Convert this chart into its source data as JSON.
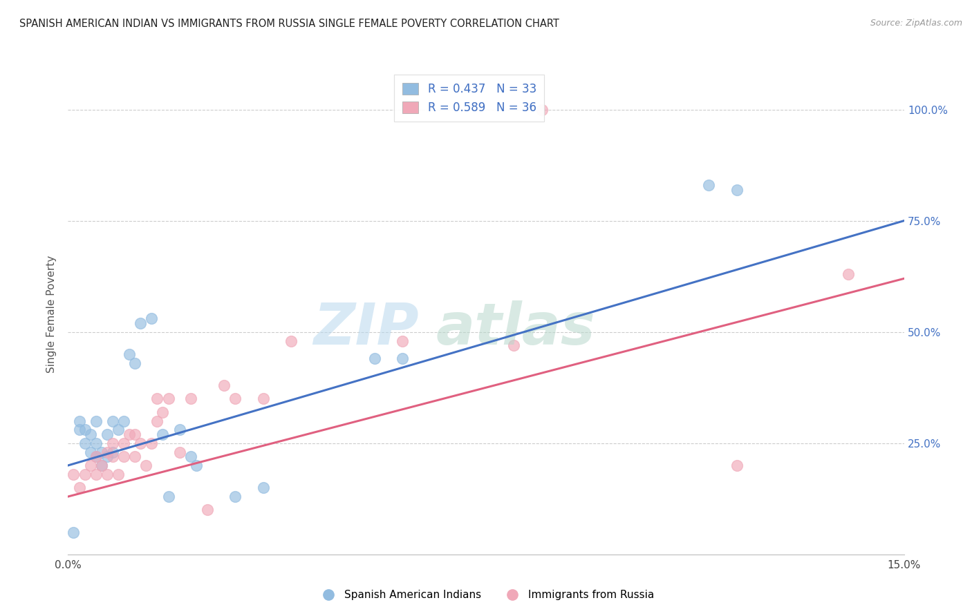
{
  "title": "SPANISH AMERICAN INDIAN VS IMMIGRANTS FROM RUSSIA SINGLE FEMALE POVERTY CORRELATION CHART",
  "source": "Source: ZipAtlas.com",
  "ylabel": "Single Female Poverty",
  "xlim": [
    0.0,
    0.15
  ],
  "ylim": [
    0.0,
    1.08
  ],
  "y_ticks": [
    0.25,
    0.5,
    0.75,
    1.0
  ],
  "y_tick_labels": [
    "25.0%",
    "50.0%",
    "75.0%",
    "100.0%"
  ],
  "x_tick_left": "0.0%",
  "x_tick_right": "15.0%",
  "blue_R": 0.437,
  "blue_N": 33,
  "pink_R": 0.589,
  "pink_N": 36,
  "blue_color": "#92bce0",
  "pink_color": "#f0a8b8",
  "blue_line_color": "#4472c4",
  "pink_line_color": "#e06080",
  "background_color": "#ffffff",
  "legend_label_blue": "Spanish American Indians",
  "legend_label_pink": "Immigrants from Russia",
  "blue_scatter_x": [
    0.001,
    0.002,
    0.002,
    0.003,
    0.003,
    0.004,
    0.004,
    0.005,
    0.005,
    0.005,
    0.006,
    0.006,
    0.007,
    0.007,
    0.008,
    0.008,
    0.009,
    0.01,
    0.011,
    0.012,
    0.013,
    0.015,
    0.017,
    0.018,
    0.02,
    0.022,
    0.023,
    0.03,
    0.035,
    0.055,
    0.06,
    0.115,
    0.12
  ],
  "blue_scatter_y": [
    0.05,
    0.28,
    0.3,
    0.25,
    0.28,
    0.23,
    0.27,
    0.22,
    0.25,
    0.3,
    0.2,
    0.23,
    0.22,
    0.27,
    0.23,
    0.3,
    0.28,
    0.3,
    0.45,
    0.43,
    0.52,
    0.53,
    0.27,
    0.13,
    0.28,
    0.22,
    0.2,
    0.13,
    0.15,
    0.44,
    0.44,
    0.83,
    0.82
  ],
  "pink_scatter_x": [
    0.001,
    0.002,
    0.003,
    0.004,
    0.005,
    0.005,
    0.006,
    0.007,
    0.007,
    0.008,
    0.008,
    0.009,
    0.01,
    0.01,
    0.011,
    0.012,
    0.012,
    0.013,
    0.014,
    0.015,
    0.016,
    0.016,
    0.017,
    0.018,
    0.02,
    0.022,
    0.025,
    0.028,
    0.03,
    0.035,
    0.04,
    0.06,
    0.08,
    0.085,
    0.12,
    0.14
  ],
  "pink_scatter_y": [
    0.18,
    0.15,
    0.18,
    0.2,
    0.18,
    0.22,
    0.2,
    0.18,
    0.23,
    0.22,
    0.25,
    0.18,
    0.22,
    0.25,
    0.27,
    0.22,
    0.27,
    0.25,
    0.2,
    0.25,
    0.3,
    0.35,
    0.32,
    0.35,
    0.23,
    0.35,
    0.1,
    0.38,
    0.35,
    0.35,
    0.48,
    0.48,
    0.47,
    1.0,
    0.2,
    0.63
  ],
  "blue_line_x": [
    0.0,
    0.15
  ],
  "blue_line_y": [
    0.2,
    0.75
  ],
  "pink_line_x": [
    0.0,
    0.15
  ],
  "pink_line_y": [
    0.13,
    0.62
  ]
}
